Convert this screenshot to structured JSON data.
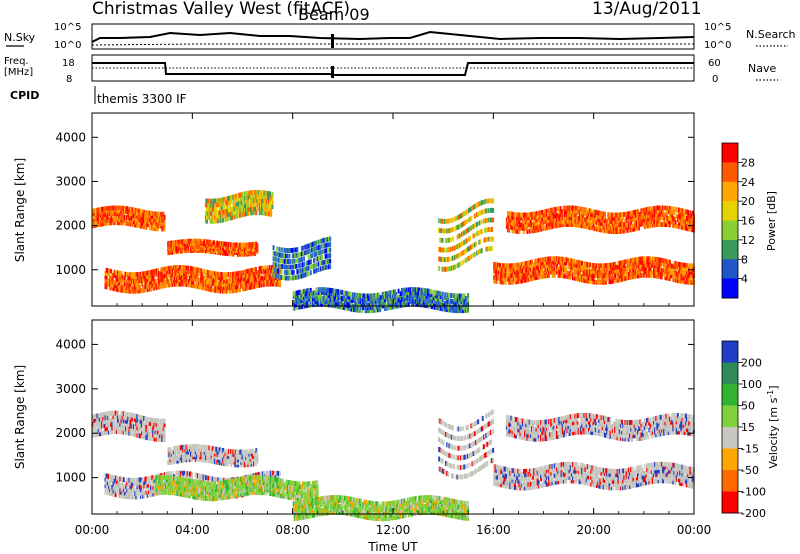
{
  "header": {
    "title": "Christmas Valley West (fitACF)",
    "beam": "Beam 09",
    "date": "13/Aug/2011"
  },
  "status_panels": {
    "nsky": {
      "label": "N.Sky",
      "ticks": [
        "10^5",
        "10^0"
      ]
    },
    "nsearch": {
      "label": "N.Search",
      "ticks": [
        "10^5",
        "10^0"
      ]
    },
    "freq": {
      "label_line1": "Freq.",
      "label_line2": "[MHz]",
      "ticks": [
        "18",
        "8"
      ]
    },
    "nave": {
      "label": "Nave",
      "ticks": [
        "60",
        "0"
      ]
    },
    "cpid": {
      "label": "CPID",
      "value": "themis 3300 IF"
    }
  },
  "chart_data": [
    {
      "type": "heatmap",
      "panel": "power",
      "ylabel": "Slant Range [km]",
      "x_ticks": [
        "00:00",
        "04:00",
        "08:00",
        "12:00",
        "16:00",
        "20:00",
        "00:00"
      ],
      "y_ticks": [
        1000,
        2000,
        3000,
        4000
      ],
      "xlim_hours": [
        0,
        24
      ],
      "ylim_km": [
        180,
        4550
      ],
      "colorbar": {
        "label": "Power [dB]",
        "tick_labels": [
          "28",
          "24",
          "20",
          "16",
          "12",
          "8",
          "4"
        ],
        "colors": [
          "#ff0000",
          "#ff5a00",
          "#ffa500",
          "#e6d200",
          "#8ccf32",
          "#3a9a5c",
          "#1f55c8",
          "#0000ff"
        ]
      },
      "echo_bands": [
        {
          "start_h": 0.0,
          "end_h": 2.9,
          "range_km": [
            2050,
            2450
          ],
          "level": "high"
        },
        {
          "start_h": 3.0,
          "end_h": 6.6,
          "range_km": [
            1450,
            1700
          ],
          "level": "high"
        },
        {
          "start_h": 0.5,
          "end_h": 7.5,
          "range_km": [
            650,
            1100
          ],
          "level": "high"
        },
        {
          "start_h": 4.5,
          "end_h": 7.2,
          "range_km": [
            2250,
            2800
          ],
          "level": "mid"
        },
        {
          "start_h": 7.2,
          "end_h": 9.5,
          "range_km": [
            1000,
            1750
          ],
          "level": "low"
        },
        {
          "start_h": 8.0,
          "end_h": 15.0,
          "range_km": [
            200,
            600
          ],
          "level": "low"
        },
        {
          "start_h": 13.8,
          "end_h": 16.0,
          "range_km": [
            1300,
            2600
          ],
          "level": "mid"
        },
        {
          "start_h": 16.5,
          "end_h": 24.0,
          "range_km": [
            2000,
            2450
          ],
          "level": "high"
        },
        {
          "start_h": 16.0,
          "end_h": 24.0,
          "range_km": [
            850,
            1300
          ],
          "level": "high"
        }
      ]
    },
    {
      "type": "heatmap",
      "panel": "velocity",
      "ylabel": "Slant Range [km]",
      "xlabel": "Time UT",
      "x_ticks": [
        "00:00",
        "04:00",
        "08:00",
        "12:00",
        "16:00",
        "20:00",
        "00:00"
      ],
      "y_ticks": [
        1000,
        2000,
        3000,
        4000
      ],
      "xlim_hours": [
        0,
        24
      ],
      "ylim_km": [
        180,
        4550
      ],
      "colorbar": {
        "label": "Velocity [m s",
        "label_sup": "-1",
        "label_end": "]",
        "tick_labels": [
          "200",
          "100",
          "50",
          "15",
          "-15",
          "-50",
          "-100",
          "-200"
        ],
        "colors": [
          "#1f3ec8",
          "#2e8b57",
          "#32b432",
          "#7fd23c",
          "#c8c8c0",
          "#ffa500",
          "#ff6a00",
          "#ff0000"
        ]
      },
      "echo_bands": [
        {
          "start_h": 0.0,
          "end_h": 2.9,
          "range_km": [
            2000,
            2500
          ],
          "level": "ground"
        },
        {
          "start_h": 3.0,
          "end_h": 6.6,
          "range_km": [
            1400,
            1750
          ],
          "level": "ground"
        },
        {
          "start_h": 0.5,
          "end_h": 7.5,
          "range_km": [
            700,
            1150
          ],
          "level": "ground"
        },
        {
          "start_h": 2.5,
          "end_h": 9.0,
          "range_km": [
            650,
            1050
          ],
          "level": "slow_pos"
        },
        {
          "start_h": 8.0,
          "end_h": 15.0,
          "range_km": [
            200,
            600
          ],
          "level": "slow_pos"
        },
        {
          "start_h": 13.8,
          "end_h": 16.0,
          "range_km": [
            1300,
            2600
          ],
          "level": "ground"
        },
        {
          "start_h": 16.5,
          "end_h": 24.0,
          "range_km": [
            2000,
            2450
          ],
          "level": "ground"
        },
        {
          "start_h": 16.0,
          "end_h": 24.0,
          "range_km": [
            900,
            1350
          ],
          "level": "ground"
        }
      ]
    }
  ]
}
